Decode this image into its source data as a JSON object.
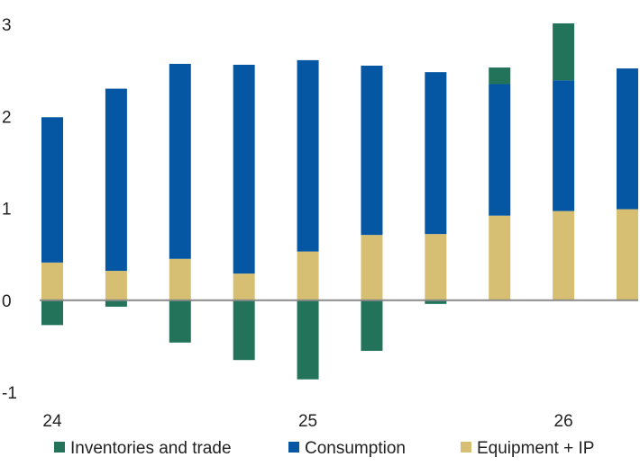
{
  "chart_data": {
    "type": "bar",
    "stacked": true,
    "title": "",
    "xlabel": "",
    "ylabel": "",
    "ylim": [
      -1,
      3
    ],
    "yticks": [
      "-1",
      "0",
      "1",
      "2",
      "3"
    ],
    "xtick_labels": [
      {
        "label": "24",
        "at_bar": 0
      },
      {
        "label": "25",
        "at_bar": 4
      },
      {
        "label": "26",
        "at_bar": 8
      }
    ],
    "bar_count": 10,
    "legend_position": "bottom",
    "series": [
      {
        "name": "Inventories and trade",
        "color": "#23735b",
        "values": [
          -0.27,
          -0.07,
          -0.46,
          -0.65,
          -0.86,
          -0.55,
          -0.04,
          0.18,
          0.62,
          0.0
        ]
      },
      {
        "name": "Consumption",
        "color": "#0556a3",
        "values": [
          1.58,
          1.98,
          2.12,
          2.27,
          2.08,
          1.84,
          1.76,
          1.43,
          1.42,
          1.53
        ]
      },
      {
        "name": "Equipment + IP",
        "color": "#d6bf73",
        "values": [
          0.41,
          0.32,
          0.45,
          0.29,
          0.53,
          0.71,
          0.72,
          0.92,
          0.97,
          0.99
        ]
      }
    ],
    "grid": false
  }
}
